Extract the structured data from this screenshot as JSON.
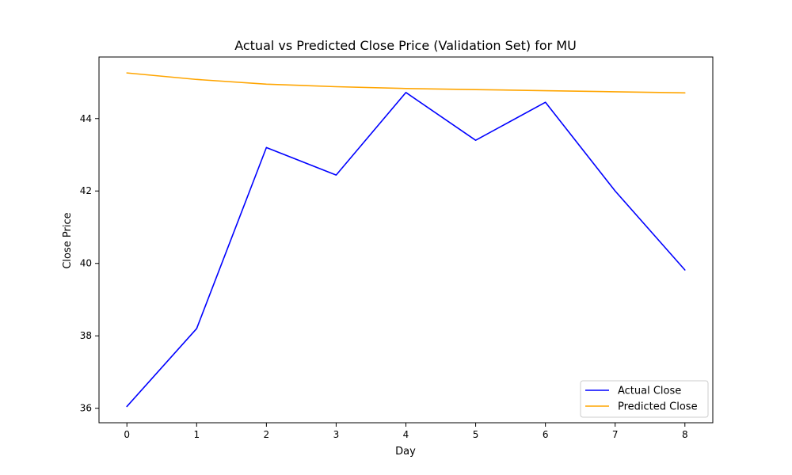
{
  "chart_data": {
    "type": "line",
    "title": "Actual vs Predicted Close Price (Validation Set) for MU",
    "xlabel": "Day",
    "ylabel": "Close Price",
    "x": [
      0,
      1,
      2,
      3,
      4,
      5,
      6,
      7,
      8
    ],
    "xticks": [
      "0",
      "1",
      "2",
      "3",
      "4",
      "5",
      "6",
      "7",
      "8"
    ],
    "yticks": [
      "36",
      "38",
      "40",
      "42",
      "44"
    ],
    "xlim": [
      -0.4,
      8.4
    ],
    "ylim": [
      35.6,
      45.7
    ],
    "series": [
      {
        "name": "Actual Close",
        "color": "#0000ff",
        "values": [
          36.05,
          38.2,
          43.2,
          42.44,
          44.72,
          43.4,
          44.45,
          42.0,
          39.82
        ]
      },
      {
        "name": "Predicted Close",
        "color": "#ffa500",
        "values": [
          45.26,
          45.08,
          44.95,
          44.88,
          44.83,
          44.8,
          44.77,
          44.74,
          44.71
        ]
      }
    ],
    "legend": "lower-right",
    "grid": false
  }
}
